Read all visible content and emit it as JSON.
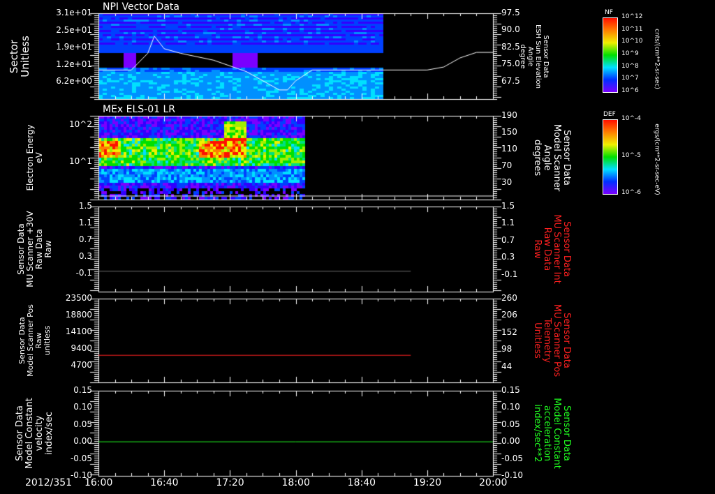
{
  "colors": {
    "accent_red": "#ff2020",
    "accent_green": "#20ff20",
    "line_gray": "#707070"
  },
  "x_axis": {
    "date": "2012/351",
    "ticks": [
      "16:00",
      "16:40",
      "17:20",
      "18:00",
      "18:40",
      "19:20",
      "20:00"
    ]
  },
  "colorbars": [
    {
      "title": "NF",
      "labels": [
        "10^12",
        "10^11",
        "10^10",
        "10^9",
        "10^8",
        "10^7",
        "10^6"
      ],
      "unit": "cnts/(cm**2-sr-sec)"
    },
    {
      "title": "DEF",
      "labels": [
        "10^-4",
        "10^-5",
        "10^-6"
      ],
      "unit": "ergs/(cm**2-sr-sec-eV)"
    }
  ],
  "chart_data": [
    {
      "type": "heatmap",
      "title": "NPI Vector Data",
      "ylabel": "Sector\nUnitless",
      "yticks": [
        "3.1e+01",
        "2.5e+01",
        "1.9e+01",
        "1.2e+01",
        "6.2e+00"
      ],
      "y2label": "Sensor Data\nESH Sun Elevation\nAngle\ndegree",
      "y2ticks": [
        "97.5",
        "90.0",
        "82.5",
        "75.0",
        "67.5"
      ],
      "y2lim": [
        60,
        97.5
      ],
      "line": {
        "x_minutes": [
          0,
          20,
          30,
          34,
          40,
          50,
          70,
          90,
          100,
          110,
          115,
          120,
          130,
          200,
          210,
          220,
          230,
          240
        ],
        "y": [
          72.7,
          72.7,
          80,
          87.5,
          82,
          80,
          77,
          72,
          68,
          64,
          64,
          68,
          72.7,
          72.7,
          74,
          78,
          80.4,
          80.4
        ]
      },
      "data_end_minute": 172
    },
    {
      "type": "heatmap",
      "title": "MEx ELS-01 LR",
      "ylabel": "Electron Energy\neV",
      "yticks": [
        "10^2",
        "10^1"
      ],
      "y2label": "Sensor Data\nModel Scanner\nAngle\ndegrees",
      "y2ticks": [
        "190",
        "150",
        "110",
        "70",
        "30"
      ],
      "y2lim": [
        0,
        190
      ],
      "line": {
        "x_minutes": [
          0,
          240
        ],
        "y": [
          8,
          8
        ]
      },
      "data_end_minute": 125
    },
    {
      "type": "line",
      "ylabel": "Sensor Data\nMU Scanner +30V\nRaw Data\nRaw",
      "yticks": [
        "1.5",
        "1.1",
        "0.7",
        "0.3",
        "-0.1"
      ],
      "ylim": [
        -0.5,
        1.5
      ],
      "y2label": "Sensor Data\nMU Scanner Int\nRaw Data\nRaw",
      "y2ticks": [
        "1.5",
        "1.1",
        "0.7",
        "0.3",
        "-0.1"
      ],
      "series": [
        {
          "name": "MU Scanner +30V",
          "x_minutes": [
            0,
            190
          ],
          "y": [
            -0.02,
            -0.02
          ]
        }
      ]
    },
    {
      "type": "line",
      "ylabel": "Sensor Data\nModel Scanner Pos\nRaw\nunitless",
      "yticks": [
        "23500",
        "18800",
        "14100",
        "9400",
        "4700"
      ],
      "ylim": [
        0,
        23500
      ],
      "y2label": "Sensor Data\nMU Scanner Pos\nTelemetry\nUnitless",
      "y2ticks": [
        "260",
        "206",
        "152",
        "98",
        "44"
      ],
      "series": [
        {
          "name": "Model Scanner Pos",
          "x_minutes": [
            0,
            190
          ],
          "y": [
            7600,
            7600
          ]
        }
      ]
    },
    {
      "type": "line",
      "ylabel": "Sensor Data\nModel Constant\nvelocity\nindex/sec",
      "yticks": [
        "0.15",
        "0.10",
        "0.05",
        "0.00",
        "-0.05",
        "-0.10"
      ],
      "ylim": [
        -0.1,
        0.15
      ],
      "y2label": "Sensor Data\nModel Constant\nacceleration\nindex/sec**2",
      "y2ticks": [
        "0.15",
        "0.10",
        "0.05",
        "0.00",
        "-0.05",
        "-0.10"
      ],
      "series": [
        {
          "name": "Model Constant velocity",
          "x_minutes": [
            0,
            240
          ],
          "y": [
            0,
            0
          ]
        }
      ]
    }
  ]
}
